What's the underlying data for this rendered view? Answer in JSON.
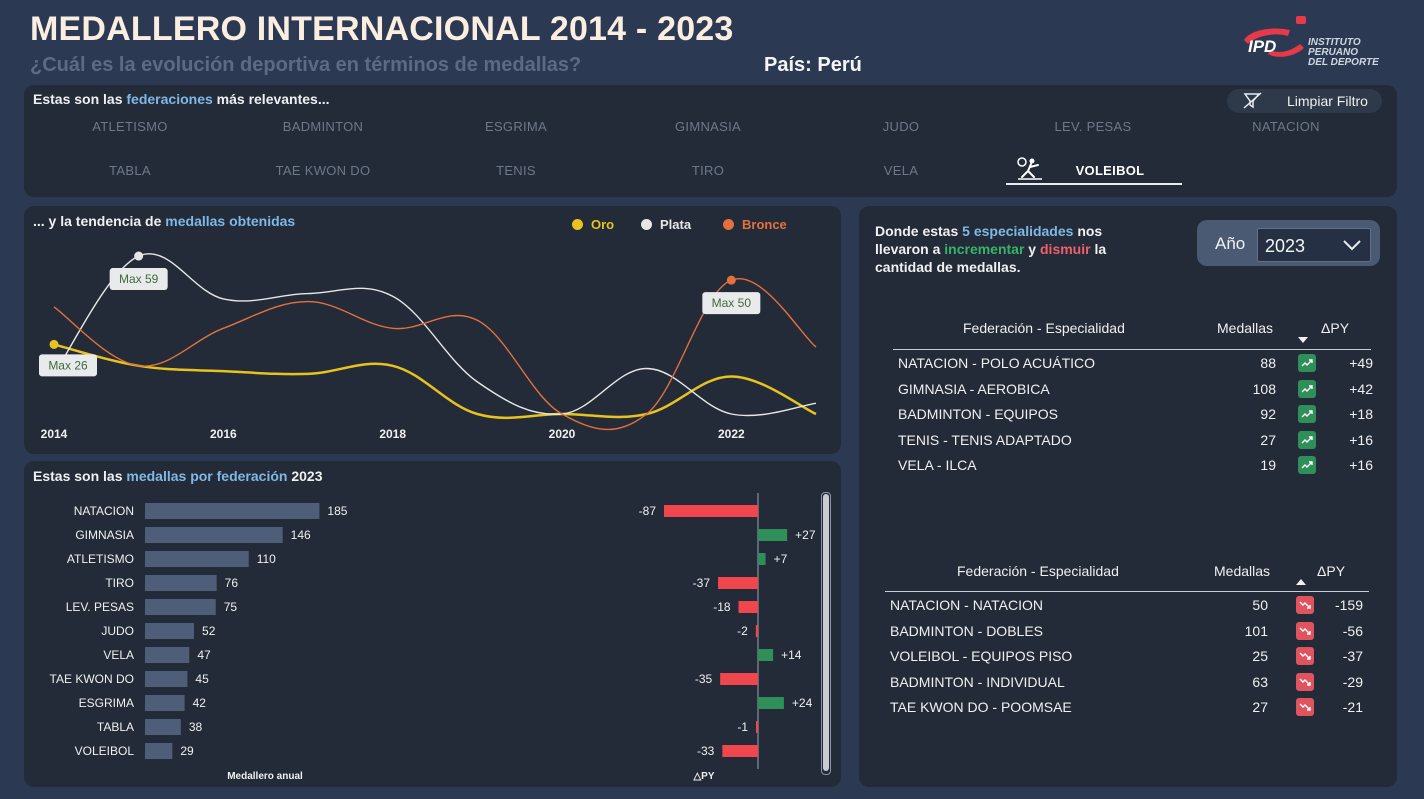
{
  "header": {
    "title": "MEDALLERO INTERNACIONAL 2014 - 2023",
    "subtitle": "¿Cuál es la evolución deportiva en términos de medallas?",
    "country": "País: Perú",
    "logo": {
      "mark": "IPD",
      "line1": "INSTITUTO",
      "line2": "PERUANO",
      "line3": "DEL DEPORTE"
    }
  },
  "federations": {
    "title_pre": "Estas son las ",
    "title_hl": "federaciones",
    "title_post": " más relevantes...",
    "clear_filter": "Limpiar Filtro",
    "items": [
      "ATLETISMO",
      "BADMINTON",
      "ESGRIMA",
      "GIMNASIA",
      "JUDO",
      "LEV. PESAS",
      "NATACION",
      "TABLA",
      "TAE KWON DO",
      "TENIS",
      "TIRO",
      "VELA",
      "VOLEIBOL"
    ],
    "selected": "VOLEIBOL"
  },
  "trend": {
    "title_pre": "... y la tendencia de ",
    "title_hl": "medallas obtenidas",
    "legend": [
      {
        "name": "Oro",
        "color": "#e8c21e"
      },
      {
        "name": "Plata",
        "color": "#e6e6e6"
      },
      {
        "name": "Bronce",
        "color": "#e3703d"
      }
    ],
    "annotations": [
      "Max 26",
      "Max 59",
      "Max 50"
    ]
  },
  "chart_data": [
    {
      "type": "line",
      "title": "... y la tendencia de medallas obtenidas",
      "x": [
        2014,
        2015,
        2016,
        2017,
        2018,
        2019,
        2020,
        2021,
        2022,
        2023
      ],
      "xticks": [
        "2014",
        "2016",
        "2018",
        "2020",
        "2022"
      ],
      "ylim": [
        0,
        65
      ],
      "series": [
        {
          "name": "Oro",
          "color": "#e8c21e",
          "values": [
            26,
            18,
            16,
            15,
            18,
            0,
            0,
            0,
            14,
            0
          ]
        },
        {
          "name": "Plata",
          "color": "#e6e6e6",
          "values": [
            15,
            59,
            43,
            45,
            44,
            12,
            0,
            17,
            0,
            4
          ]
        },
        {
          "name": "Bronce",
          "color": "#e3703d",
          "values": [
            40,
            18,
            32,
            42,
            32,
            35,
            0,
            0,
            50,
            25
          ]
        }
      ],
      "annotations": [
        {
          "series": "Oro",
          "x": 2014,
          "label": "Max 26"
        },
        {
          "series": "Plata",
          "x": 2015,
          "label": "Max 59"
        },
        {
          "series": "Bronce",
          "x": 2022,
          "label": "Max 50"
        }
      ]
    },
    {
      "type": "bar",
      "title": "Estas son las medallas por federación 2023",
      "xlabel": "Medallero anual",
      "categories": [
        "NATACION",
        "GIMNASIA",
        "ATLETISMO",
        "TIRO",
        "LEV. PESAS",
        "JUDO",
        "VELA",
        "TAE KWON DO",
        "ESGRIMA",
        "TABLA",
        "VOLEIBOL"
      ],
      "values": [
        185,
        146,
        110,
        76,
        75,
        52,
        47,
        45,
        42,
        38,
        29
      ],
      "value_labels": [
        "185",
        "146",
        "110",
        "76",
        "75",
        "52",
        "47",
        "45",
        "42",
        "38",
        "29"
      ],
      "xlim": [
        0,
        210
      ]
    },
    {
      "type": "bar",
      "title": "△PY",
      "xlabel": "△PY",
      "categories": [
        "NATACION",
        "GIMNASIA",
        "ATLETISMO",
        "TIRO",
        "LEV. PESAS",
        "JUDO",
        "VELA",
        "TAE KWON DO",
        "ESGRIMA",
        "TABLA",
        "VOLEIBOL"
      ],
      "values": [
        -87,
        27,
        7,
        -37,
        -18,
        -2,
        14,
        -35,
        24,
        -1,
        -33
      ],
      "value_labels": [
        "-87",
        "+27",
        "+7",
        "-37",
        "-18",
        "-2",
        "+14",
        "-35",
        "+24",
        "-1",
        "-33"
      ],
      "colors": {
        "positive": "#2f8f58",
        "negative": "#f0474f"
      },
      "xlim": [
        -90,
        30
      ]
    }
  ],
  "bars": {
    "title_pre": "Estas son las ",
    "title_hl": "medallas por federación",
    "title_post": " 2023",
    "xlabel_left": "Medallero anual",
    "xlabel_right": "△PY"
  },
  "specialties": {
    "line1_pre": "Donde estas ",
    "line1_hl": "5 especialidades",
    "line1_post": " nos",
    "line2_pre": "llevaron a ",
    "line2_up": "incrementar",
    "line2_mid": " y ",
    "line2_down": "dismuir",
    "line2_post": " la",
    "line3": "cantidad de medallas.",
    "year_label": "Año",
    "year_value": "2023",
    "col_fed": "Federación - Especialidad",
    "col_medals": "Medallas",
    "col_delta": "ΔPY",
    "top": [
      {
        "name": "NATACION - POLO ACUÁTICO",
        "medals": "88",
        "delta": "+49"
      },
      {
        "name": "GIMNASIA - AEROBICA",
        "medals": "108",
        "delta": "+42"
      },
      {
        "name": "BADMINTON - EQUIPOS",
        "medals": "92",
        "delta": "+18"
      },
      {
        "name": "TENIS - TENIS ADAPTADO",
        "medals": "27",
        "delta": "+16"
      },
      {
        "name": "VELA - ILCA",
        "medals": "19",
        "delta": "+16"
      }
    ],
    "bottom": [
      {
        "name": "NATACION - NATACION",
        "medals": "50",
        "delta": "-159"
      },
      {
        "name": "BADMINTON - DOBLES",
        "medals": "101",
        "delta": "-56"
      },
      {
        "name": "VOLEIBOL - EQUIPOS PISO",
        "medals": "25",
        "delta": "-37"
      },
      {
        "name": "BADMINTON - INDIVIDUAL",
        "medals": "63",
        "delta": "-29"
      },
      {
        "name": "TAE KWON DO - POOMSAE",
        "medals": "27",
        "delta": "-21"
      }
    ]
  }
}
